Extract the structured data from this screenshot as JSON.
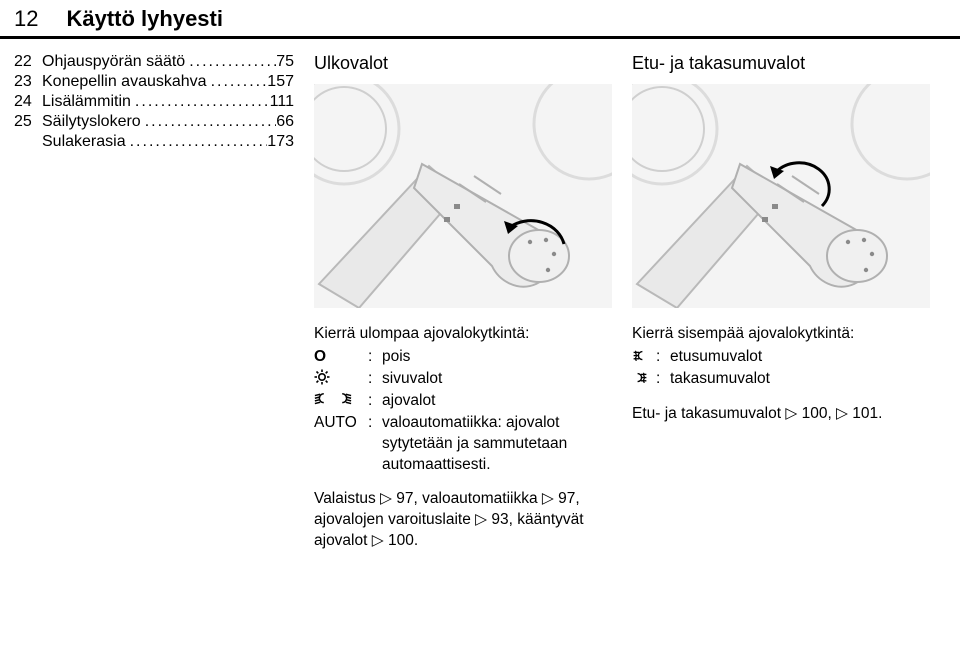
{
  "header": {
    "page_num": "12",
    "title": "Käyttö lyhyesti"
  },
  "toc": [
    {
      "num": "22",
      "label": "Ohjauspyörän säätö",
      "page": "75"
    },
    {
      "num": "23",
      "label": "Konepellin avauskahva",
      "page": "157"
    },
    {
      "num": "24",
      "label": "Lisälämmitin",
      "page": "111"
    },
    {
      "num": "25",
      "label": "Säilytyslokero",
      "page": "66"
    },
    {
      "num": "",
      "label": "Sulakerasia",
      "page": "173",
      "indent": true
    }
  ],
  "mid": {
    "heading": "Ulkovalot",
    "intro": "Kierrä ulompaa ajovalokytkintä:",
    "rows": [
      {
        "sym": "O",
        "val": "pois"
      },
      {
        "sym": "sun",
        "val": "sivuvalot"
      },
      {
        "sym": "beam2",
        "val": "ajovalot"
      },
      {
        "sym": "AUTO",
        "val": "valoautomatiikka: ajovalot sytytetään ja sammutetaan automaattisesti."
      }
    ],
    "footer": "Valaistus ▷ 97, valoautomatiikka ▷ 97, ajovalojen varoituslaite ▷ 93, kääntyvät ajovalot ▷ 100."
  },
  "right": {
    "heading": "Etu- ja takasumuvalot",
    "intro": "Kierrä sisempää ajovalokytkintä:",
    "rows": [
      {
        "sym": "fogF",
        "val": "etusumuvalot"
      },
      {
        "sym": "fogR",
        "val": "takasumuvalot"
      }
    ],
    "footer": "Etu- ja takasumuvalot ▷ 100, ▷ 101."
  },
  "colors": {
    "illus_bg": "#f4f4f4",
    "line_gray": "#b9b9b9",
    "light_gray": "#dcdcdc",
    "dark_gray": "#8a8a8a",
    "black": "#000000"
  }
}
